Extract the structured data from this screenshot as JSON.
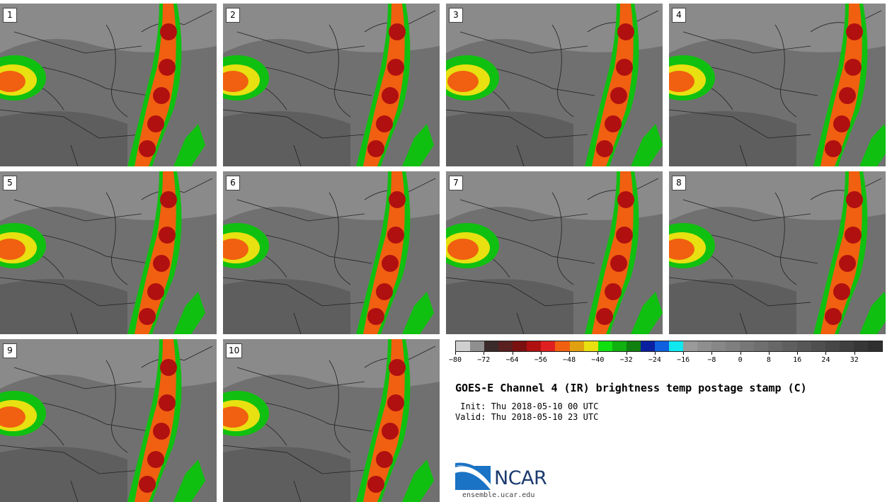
{
  "panels": [
    {
      "label": "1"
    },
    {
      "label": "2"
    },
    {
      "label": "3"
    },
    {
      "label": "4"
    },
    {
      "label": "5"
    },
    {
      "label": "6"
    },
    {
      "label": "7"
    },
    {
      "label": "8"
    },
    {
      "label": "9"
    },
    {
      "label": "10"
    }
  ],
  "colorbar": {
    "colors": [
      "#cfcfcf",
      "#8f8f8f",
      "#3a2a2a",
      "#5a1f1f",
      "#7a1010",
      "#b01010",
      "#e02020",
      "#f06010",
      "#e0a010",
      "#e8e010",
      "#10e010",
      "#10b010",
      "#108010",
      "#0a20a0",
      "#1060e0",
      "#10e8f0",
      "#9a9a9a",
      "#8f8f8f",
      "#878787",
      "#7f7f7f",
      "#777777",
      "#6f6f6f",
      "#676767",
      "#5f5f5f",
      "#575757",
      "#4f4f4f",
      "#474747",
      "#3f3f3f",
      "#373737",
      "#2f2f2f"
    ],
    "tick_labels": [
      "−80",
      "−72",
      "−64",
      "−56",
      "−48",
      "−40",
      "−32",
      "−24",
      "−16",
      "−8",
      "0",
      "8",
      "16",
      "24",
      "32"
    ]
  },
  "title": "GOES-E Channel 4 (IR) brightness temp postage stamp (C)",
  "init": " Init: Thu 2018-05-10 00 UTC",
  "valid": "Valid: Thu 2018-05-10 23 UTC",
  "logo": {
    "text": "NCAR",
    "url": "ensemble.ucar.edu"
  }
}
